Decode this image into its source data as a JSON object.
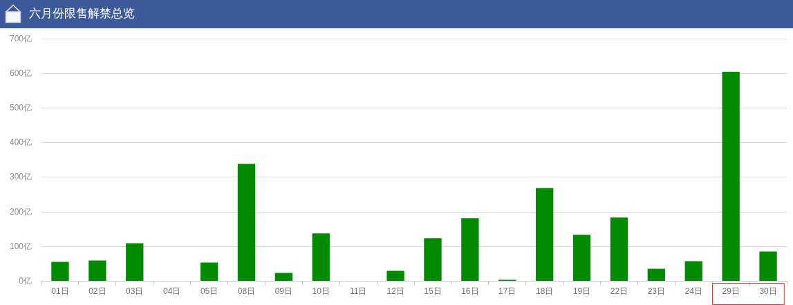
{
  "chart_data": {
    "type": "bar",
    "title": "六月份限售解禁总览",
    "categories": [
      "01日",
      "02日",
      "03日",
      "04日",
      "05日",
      "08日",
      "09日",
      "10日",
      "11日",
      "12日",
      "15日",
      "16日",
      "17日",
      "18日",
      "19日",
      "22日",
      "23日",
      "24日",
      "29日",
      "30日"
    ],
    "values": [
      56,
      60,
      110,
      0,
      54,
      339,
      24,
      138,
      0,
      30,
      124,
      182,
      4,
      269,
      134,
      184,
      36,
      58,
      605,
      86
    ],
    "color": "#028a00",
    "ylim": [
      0,
      700
    ],
    "yticks": [
      {
        "value": 0,
        "label": "0亿"
      },
      {
        "value": 100,
        "label": "100亿"
      },
      {
        "value": 200,
        "label": "200亿"
      },
      {
        "value": 300,
        "label": "300亿"
      },
      {
        "value": 400,
        "label": "400亿"
      },
      {
        "value": 500,
        "label": "500亿"
      },
      {
        "value": 600,
        "label": "600亿"
      },
      {
        "value": 700,
        "label": "700亿"
      }
    ],
    "grid": "y"
  }
}
